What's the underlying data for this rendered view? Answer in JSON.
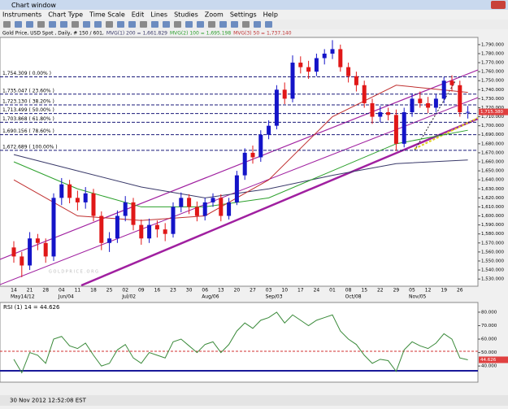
{
  "window": {
    "title": "Chart window",
    "menu": [
      "Instruments",
      "Chart Type",
      "Time Scale",
      "Edit",
      "Lines",
      "Studies",
      "Zoom",
      "Settings",
      "Help"
    ],
    "status": "30 Nov 2012 12:52:08 EST"
  },
  "chart_data": {
    "type": "candlestick",
    "header": "Gold Price, USD Spot , Daily, # 150 / 601,",
    "watermark": "G O L D P R I C E . O R G",
    "up_color": "#1414c8",
    "down_color": "#e01818",
    "open": [
      1565,
      1555,
      1545,
      1575,
      1570,
      1555,
      1620,
      1635,
      1620,
      1615,
      1625,
      1600,
      1570,
      1575,
      1600,
      1615,
      1590,
      1575,
      1590,
      1585,
      1580,
      1610,
      1620,
      1610,
      1600,
      1615,
      1620,
      1600,
      1615,
      1645,
      1670,
      1665,
      1690,
      1700,
      1740,
      1730,
      1770,
      1765,
      1760,
      1775,
      1780,
      1785,
      1765,
      1755,
      1745,
      1725,
      1710,
      1715,
      1712,
      1680,
      1715,
      1730,
      1725,
      1720,
      1730,
      1750,
      1745,
      1715
    ],
    "high": [
      1572,
      1560,
      1582,
      1580,
      1575,
      1625,
      1642,
      1640,
      1628,
      1632,
      1630,
      1605,
      1582,
      1606,
      1622,
      1620,
      1596,
      1597,
      1595,
      1592,
      1615,
      1626,
      1624,
      1616,
      1620,
      1625,
      1624,
      1620,
      1650,
      1675,
      1678,
      1695,
      1706,
      1745,
      1748,
      1778,
      1777,
      1772,
      1780,
      1785,
      1795,
      1790,
      1770,
      1760,
      1750,
      1730,
      1722,
      1720,
      1718,
      1720,
      1736,
      1738,
      1732,
      1735,
      1754,
      1756,
      1750,
      1722
    ],
    "low": [
      1548,
      1532,
      1540,
      1562,
      1548,
      1550,
      1612,
      1614,
      1606,
      1608,
      1594,
      1562,
      1560,
      1570,
      1594,
      1584,
      1568,
      1570,
      1576,
      1572,
      1576,
      1604,
      1602,
      1594,
      1595,
      1610,
      1594,
      1596,
      1612,
      1640,
      1658,
      1660,
      1685,
      1696,
      1724,
      1726,
      1758,
      1752,
      1755,
      1768,
      1774,
      1760,
      1748,
      1738,
      1720,
      1702,
      1704,
      1706,
      1672,
      1676,
      1710,
      1720,
      1714,
      1715,
      1725,
      1738,
      1710,
      1708
    ],
    "close": [
      1555,
      1545,
      1575,
      1570,
      1555,
      1620,
      1635,
      1620,
      1615,
      1625,
      1600,
      1570,
      1575,
      1600,
      1615,
      1590,
      1575,
      1590,
      1585,
      1580,
      1610,
      1620,
      1610,
      1600,
      1615,
      1620,
      1600,
      1615,
      1645,
      1670,
      1665,
      1690,
      1700,
      1740,
      1730,
      1770,
      1765,
      1760,
      1775,
      1780,
      1785,
      1765,
      1755,
      1745,
      1725,
      1710,
      1715,
      1712,
      1680,
      1715,
      1730,
      1725,
      1720,
      1730,
      1750,
      1745,
      1715,
      1715.38
    ],
    "last_price": {
      "value": 1715.38,
      "label": "1,715.380"
    },
    "series": [
      {
        "name": "MVG(1) 200 = 1,661.829",
        "color": "#3a3a6a",
        "x": [
          0,
          8,
          16,
          24,
          32,
          40,
          48,
          57
        ],
        "values": [
          1668,
          1650,
          1632,
          1620,
          1630,
          1645,
          1658,
          1662
        ]
      },
      {
        "name": "MVG(2) 100 = 1,695.198",
        "color": "#2ca02c",
        "x": [
          0,
          8,
          16,
          24,
          32,
          40,
          48,
          57
        ],
        "values": [
          1660,
          1630,
          1610,
          1610,
          1620,
          1650,
          1680,
          1695
        ]
      },
      {
        "name": "MVG(3) 50 = 1,737.140",
        "color": "#c03030",
        "x": [
          0,
          8,
          16,
          24,
          32,
          40,
          48,
          57
        ],
        "values": [
          1640,
          1600,
          1595,
          1600,
          1640,
          1710,
          1745,
          1737
        ]
      }
    ],
    "fib": [
      {
        "level": 1754.309,
        "label": "1,754.309 ( 0.00% )"
      },
      {
        "level": 1735.047,
        "label": "1,735.047 ( 23.60% )"
      },
      {
        "level": 1723.13,
        "label": "1,723.130 ( 38.20% )"
      },
      {
        "level": 1713.499,
        "label": "1,713.499 ( 50.00% )"
      },
      {
        "level": 1703.868,
        "label": "1,703.868 ( 61.80% )"
      },
      {
        "level": 1690.156,
        "label": "1,690.156 ( 78.60% )"
      },
      {
        "level": 1672.689,
        "label": "1,672.689 ( 100.00% )"
      }
    ],
    "ylim": [
      1522,
      1798
    ],
    "yticks": [
      {
        "value": 1530,
        "label": "1,530.000"
      },
      {
        "value": 1540,
        "label": "1,540.000"
      },
      {
        "value": 1550,
        "label": "1,550.000"
      },
      {
        "value": 1560,
        "label": "1,560.000"
      },
      {
        "value": 1570,
        "label": "1,570.000"
      },
      {
        "value": 1580,
        "label": "1,580.000"
      },
      {
        "value": 1590,
        "label": "1,590.000"
      },
      {
        "value": 1600,
        "label": "1,600.000"
      },
      {
        "value": 1610,
        "label": "1,610.000"
      },
      {
        "value": 1620,
        "label": "1,620.000"
      },
      {
        "value": 1630,
        "label": "1,630.000"
      },
      {
        "value": 1640,
        "label": "1,640.000"
      },
      {
        "value": 1650,
        "label": "1,650.000"
      },
      {
        "value": 1660,
        "label": "1,660.000"
      },
      {
        "value": 1670,
        "label": "1,670.000"
      },
      {
        "value": 1680,
        "label": "1,680.000"
      },
      {
        "value": 1690,
        "label": "1,690.000"
      },
      {
        "value": 1700,
        "label": "1,700.000"
      },
      {
        "value": 1710,
        "label": "1,710.000"
      },
      {
        "value": 1720,
        "label": "1,720.000"
      },
      {
        "value": 1730,
        "label": "1,730.000"
      },
      {
        "value": 1740,
        "label": "1,740.000"
      },
      {
        "value": 1750,
        "label": "1,750.000"
      },
      {
        "value": 1760,
        "label": "1,760.000"
      },
      {
        "value": 1770,
        "label": "1,770.000"
      },
      {
        "value": 1780,
        "label": "1,780.000"
      },
      {
        "value": 1790,
        "label": "1,790.000"
      }
    ],
    "week_labels": [
      "14",
      "21",
      "28",
      "04",
      "11",
      "18",
      "25",
      "02",
      "09",
      "16",
      "23",
      "30",
      "06",
      "13",
      "20",
      "27",
      "03",
      "10",
      "17",
      "24",
      "01",
      "08",
      "15",
      "22",
      "29",
      "05",
      "12",
      "19",
      "26"
    ],
    "month_labels": [
      "May14/12",
      null,
      null,
      "Jun/04",
      null,
      null,
      null,
      "Jul/02",
      null,
      null,
      null,
      null,
      "Aug/06",
      null,
      null,
      null,
      "Sep/03",
      null,
      null,
      null,
      null,
      "Oct/08",
      null,
      null,
      null,
      "Nov/05",
      null,
      null,
      null
    ],
    "rsi": {
      "name": "RSI (1) 14 = 44.626",
      "color": "#3a8a3a",
      "values": [
        45,
        35,
        50,
        48,
        42,
        60,
        62,
        55,
        53,
        57,
        48,
        40,
        42,
        52,
        56,
        46,
        42,
        50,
        48,
        46,
        58,
        60,
        55,
        50,
        56,
        58,
        50,
        56,
        66,
        72,
        68,
        74,
        76,
        80,
        72,
        78,
        74,
        70,
        74,
        76,
        78,
        66,
        60,
        56,
        48,
        42,
        45,
        44,
        36,
        52,
        58,
        55,
        53,
        57,
        64,
        60,
        46,
        44.626
      ],
      "ylim": [
        28,
        86
      ],
      "yticks": [
        {
          "value": 40,
          "label": "40.000"
        },
        {
          "value": 50,
          "label": "50.000"
        },
        {
          "value": 60,
          "label": "60.000"
        },
        {
          "value": 70,
          "label": "70.000"
        },
        {
          "value": 80,
          "label": "80.000"
        }
      ]
    }
  }
}
